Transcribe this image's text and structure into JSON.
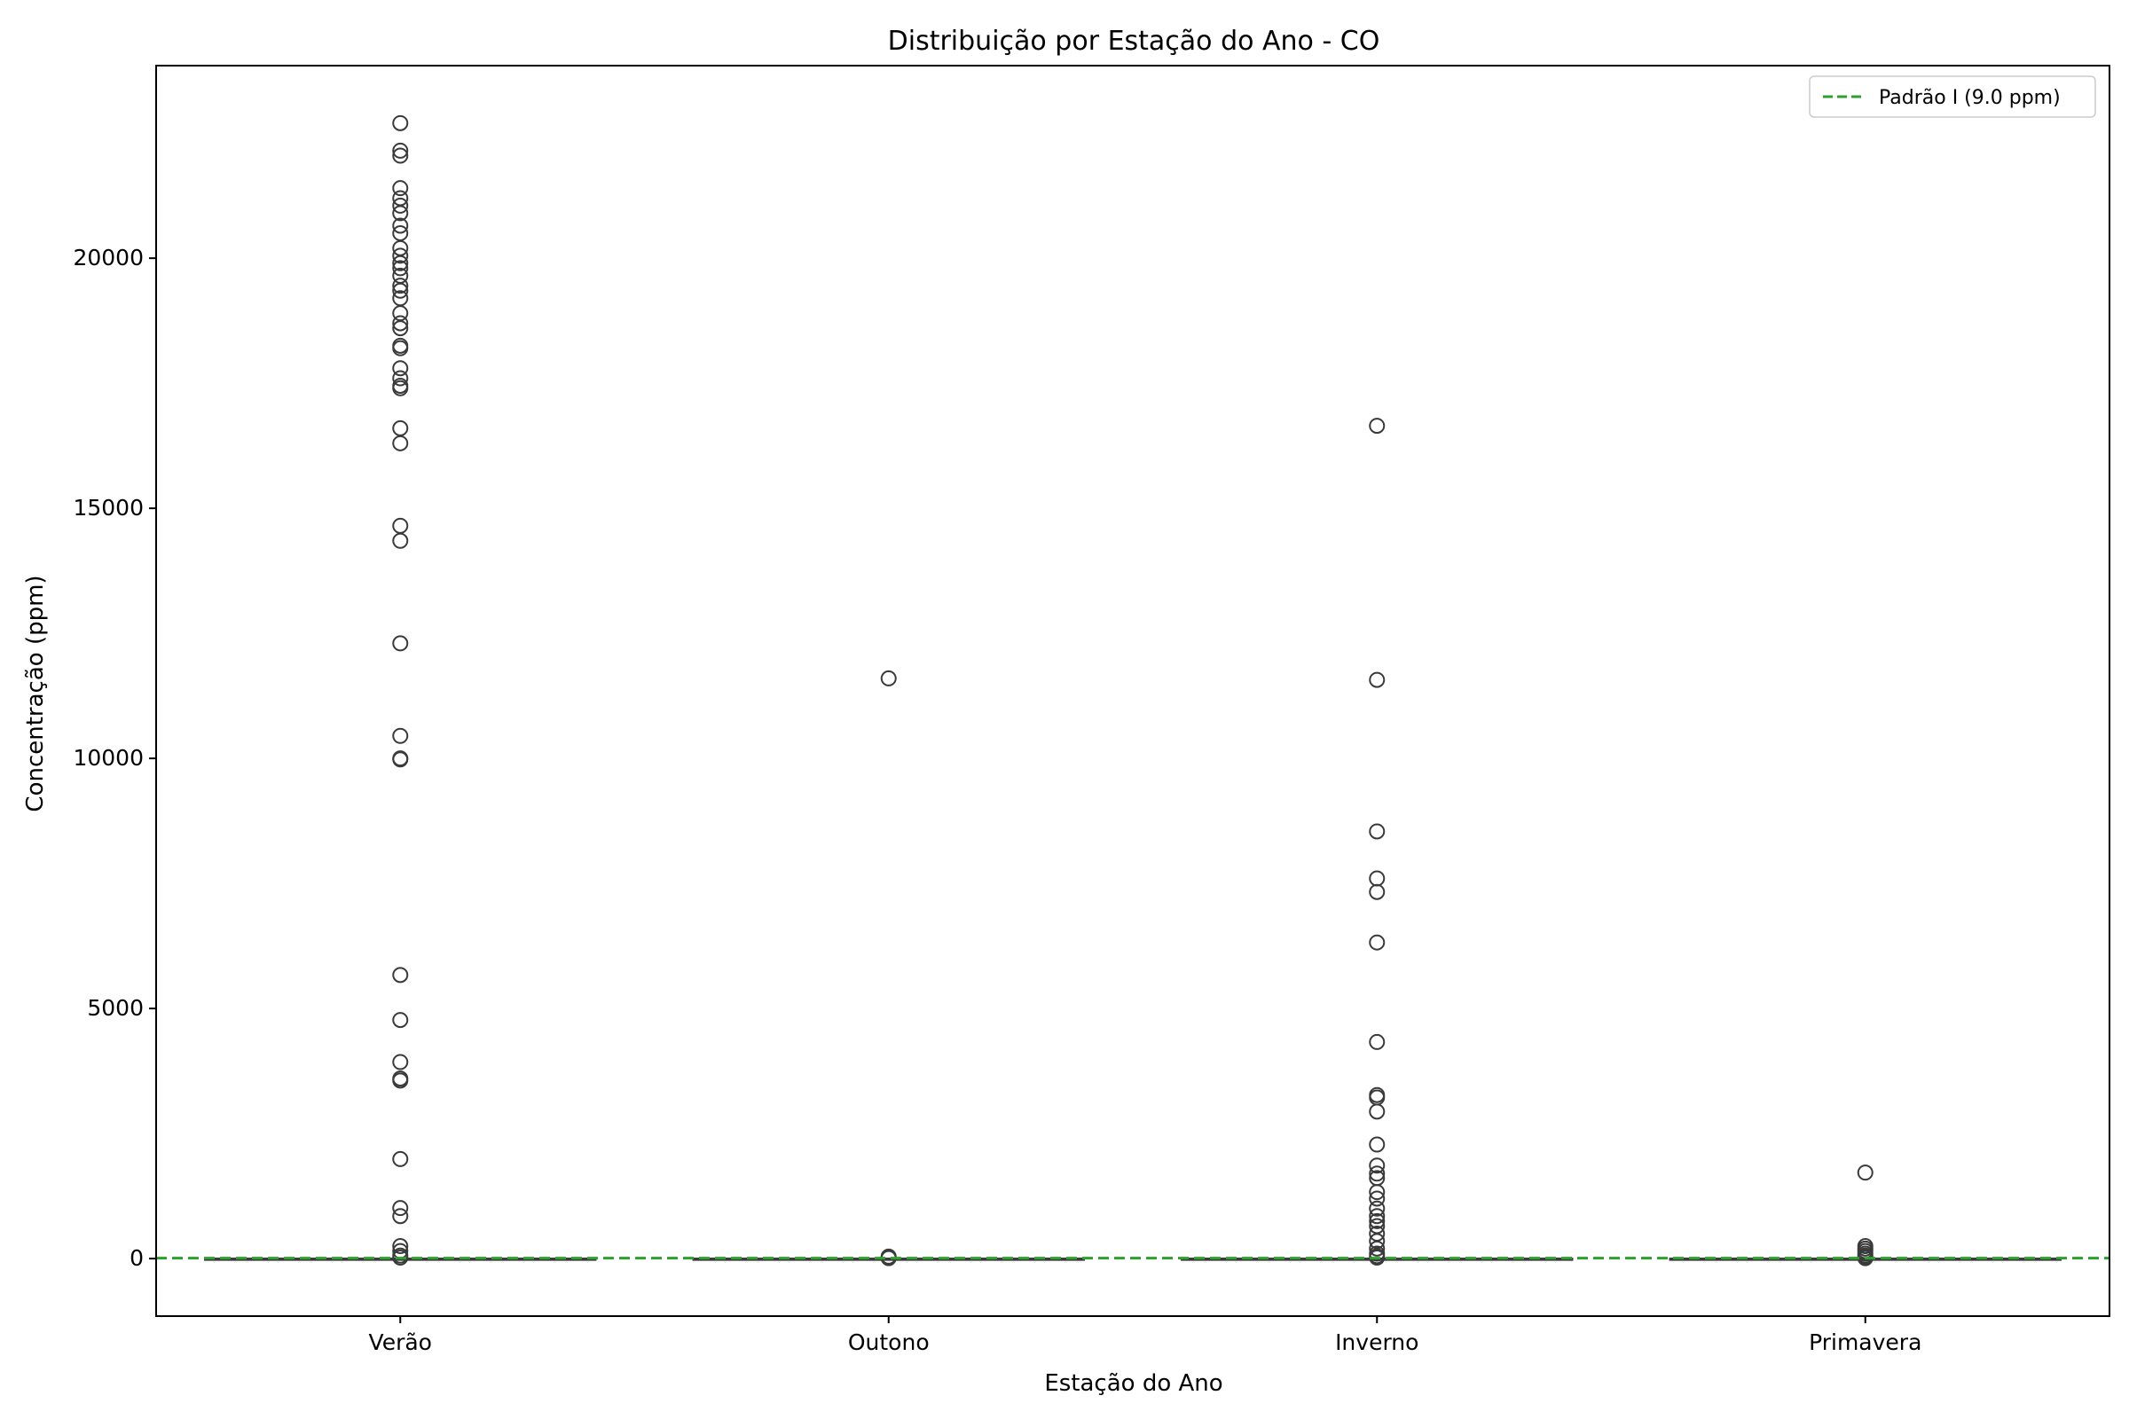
{
  "chart_data": {
    "type": "boxplot",
    "title": "Distribuição por Estação do Ano - CO",
    "xlabel": "Estação do Ano",
    "ylabel": "Concentração (ppm)",
    "categories": [
      "Verão",
      "Outono",
      "Inverno",
      "Primavera"
    ],
    "ylim": [
      -1150,
      23850
    ],
    "yticks": [
      0,
      5000,
      10000,
      15000,
      20000
    ],
    "grid": false,
    "legend": {
      "position": "top-right",
      "entries": [
        {
          "label": "Padrão I (9.0 ppm)",
          "style": "dashed",
          "color": "#2ca02c"
        }
      ]
    },
    "reference_line": {
      "label": "Padrão I (9.0 ppm)",
      "y": 9.0,
      "color": "#2ca02c",
      "style": "dashed"
    },
    "box_color": "#3a3a3a",
    "series": [
      {
        "category": "Verão",
        "median": 0,
        "q1": 0,
        "q3": 0,
        "whisker_low": 0,
        "whisker_high": 0,
        "outliers": [
          22700,
          22150,
          22050,
          21400,
          21200,
          21050,
          20900,
          20650,
          20500,
          20200,
          20050,
          19900,
          19800,
          19650,
          19450,
          19350,
          19200,
          18900,
          18700,
          18600,
          18250,
          18200,
          17800,
          17600,
          17450,
          17400,
          16600,
          16300,
          14650,
          14350,
          12300,
          10450,
          10000,
          9980,
          5670,
          4770,
          3930,
          3600,
          3560,
          1990,
          1010,
          850,
          250,
          150,
          60,
          20
        ]
      },
      {
        "category": "Outono",
        "median": 0,
        "q1": 0,
        "q3": 0,
        "whisker_low": 0,
        "whisker_high": 0,
        "outliers": [
          11600,
          40,
          20,
          10
        ]
      },
      {
        "category": "Inverno",
        "median": 0,
        "q1": 0,
        "q3": 0,
        "whisker_low": 0,
        "whisker_high": 0,
        "outliers": [
          16650,
          11570,
          8540,
          7600,
          7330,
          6320,
          4330,
          3270,
          3220,
          2940,
          2280,
          1860,
          1700,
          1610,
          1330,
          1200,
          1000,
          850,
          750,
          650,
          500,
          350,
          200,
          100,
          50,
          20
        ]
      },
      {
        "category": "Primavera",
        "median": 0,
        "q1": 0,
        "q3": 0,
        "whisker_low": 0,
        "whisker_high": 0,
        "outliers": [
          1720,
          250,
          200,
          150,
          100,
          60,
          30,
          10
        ]
      }
    ]
  }
}
